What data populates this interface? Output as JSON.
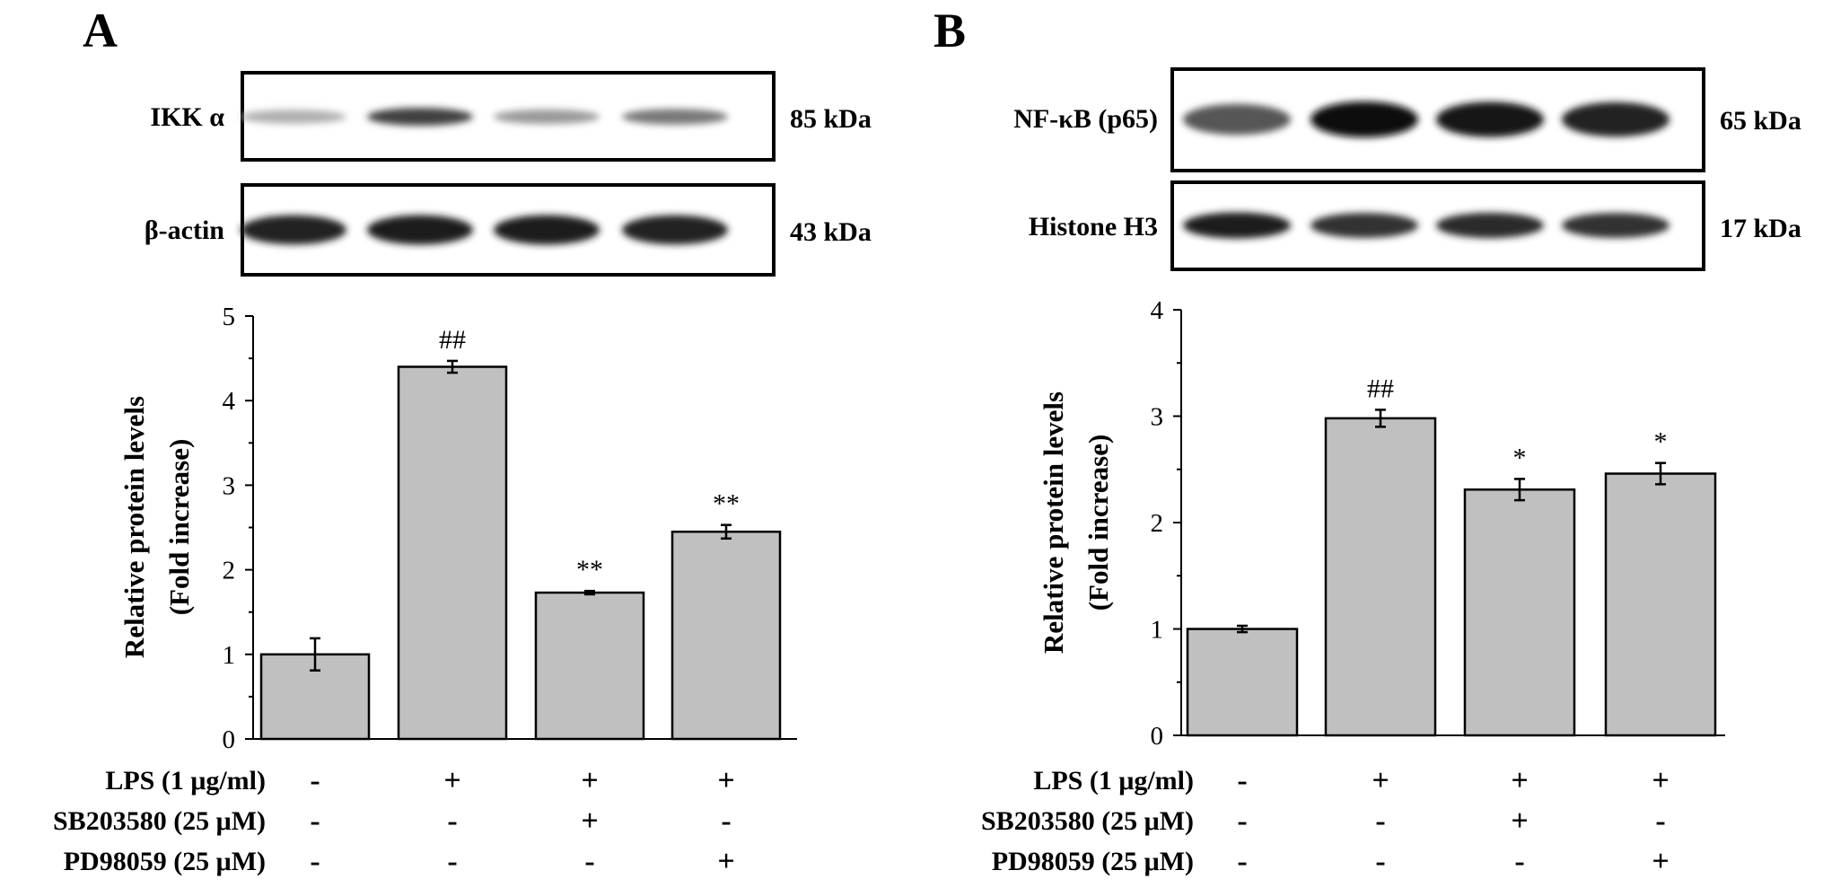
{
  "panels": [
    {
      "letter": "A",
      "blots": [
        {
          "protein": "IKK α",
          "mw": "85 kDa",
          "intensities": [
            0.25,
            0.75,
            0.35,
            0.5
          ]
        },
        {
          "protein": "β-actin",
          "mw": "43 kDa",
          "intensities": [
            0.9,
            0.92,
            0.92,
            0.9
          ]
        }
      ],
      "treatments": [
        {
          "label": "LPS (1 μg/ml)",
          "signs": [
            "-",
            "+",
            "+",
            "+"
          ]
        },
        {
          "label": "SB203580 (25 μM)",
          "signs": [
            "-",
            "-",
            "+",
            "-"
          ]
        },
        {
          "label": "PD98059 (25 μM)",
          "signs": [
            "-",
            "-",
            "-",
            "+"
          ]
        }
      ]
    },
    {
      "letter": "B",
      "blots": [
        {
          "protein": "NF-κB (p65)",
          "mw": "65 kDa",
          "intensities": [
            0.65,
            1.0,
            0.95,
            0.9
          ]
        },
        {
          "protein": "Histone H3",
          "mw": "17 kDa",
          "intensities": [
            0.92,
            0.82,
            0.85,
            0.82
          ]
        }
      ],
      "treatments": [
        {
          "label": "LPS (1 μg/ml)",
          "signs": [
            "-",
            "+",
            "+",
            "+"
          ]
        },
        {
          "label": "SB203580 (25 μM)",
          "signs": [
            "-",
            "-",
            "+",
            "-"
          ]
        },
        {
          "label": "PD98059 (25 μM)",
          "signs": [
            "-",
            "-",
            "-",
            "+"
          ]
        }
      ]
    }
  ],
  "chart_data": [
    {
      "type": "bar",
      "panel": "A",
      "title": "",
      "xlabel": "",
      "ylabel": [
        "Relative protein levels",
        "(Fold increase)"
      ],
      "ylim": [
        0,
        5
      ],
      "yticks": [
        0,
        1,
        2,
        3,
        4,
        5
      ],
      "values": [
        1.0,
        4.4,
        1.73,
        2.45
      ],
      "errors": [
        0.19,
        0.07,
        0.02,
        0.08
      ],
      "annotations": [
        "",
        "##",
        "**",
        "**"
      ],
      "bar_color": "#c0c0c0"
    },
    {
      "type": "bar",
      "panel": "B",
      "title": "",
      "xlabel": "",
      "ylabel": [
        "Relative protein levels",
        "(Fold increase)"
      ],
      "ylim": [
        0,
        4
      ],
      "yticks": [
        0,
        1,
        2,
        3,
        4
      ],
      "values": [
        1.0,
        2.98,
        2.31,
        2.46
      ],
      "errors": [
        0.03,
        0.08,
        0.1,
        0.1
      ],
      "annotations": [
        "",
        "##",
        "*",
        "*"
      ],
      "bar_color": "#c0c0c0"
    }
  ]
}
